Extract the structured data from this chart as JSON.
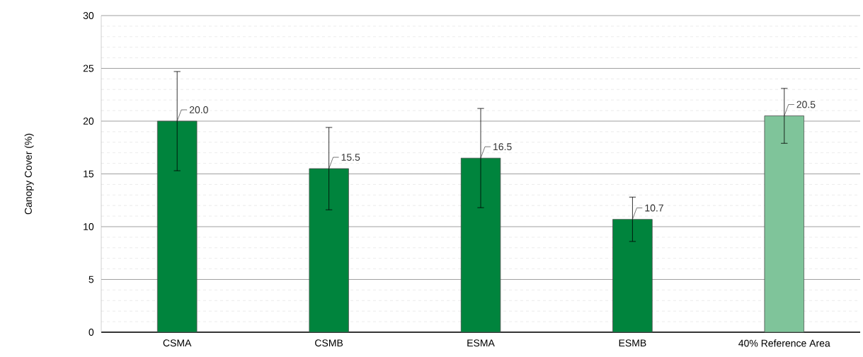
{
  "chart_data": {
    "type": "bar",
    "ylabel": "Canopy Cover (%)",
    "categories": [
      "CSMA",
      "CSMB",
      "ESMA",
      "ESMB",
      "40% Reference Area"
    ],
    "values": [
      20.0,
      15.5,
      16.5,
      10.7,
      20.5
    ],
    "errors": [
      4.7,
      3.9,
      4.7,
      2.1,
      2.6
    ],
    "value_labels": [
      "20.0",
      "15.5",
      "16.5",
      "10.7",
      "20.5"
    ],
    "colors": [
      "#00843d",
      "#00843d",
      "#00843d",
      "#00843d",
      "#7fc49a"
    ],
    "ylim": [
      0,
      30
    ],
    "yticks": [
      0,
      5,
      10,
      15,
      20,
      25,
      30
    ],
    "grid": "y"
  }
}
